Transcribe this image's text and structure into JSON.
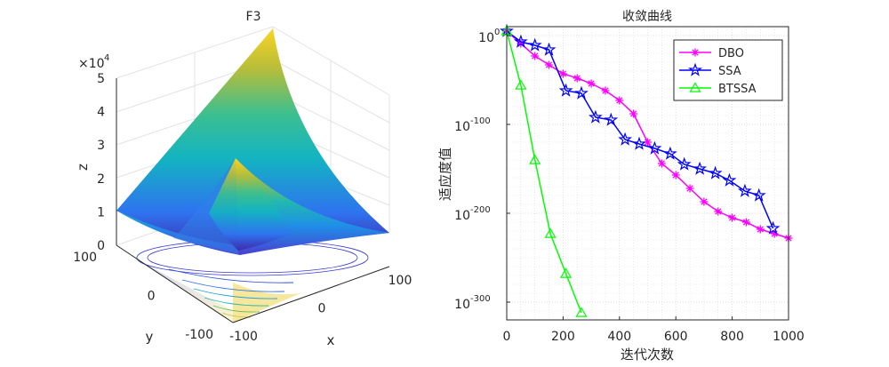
{
  "chart_data": [
    {
      "type": "surface3d",
      "title": "F3",
      "xlabel": "x",
      "ylabel": "y",
      "zlabel": "z",
      "x_ticks": [
        -100,
        0,
        100
      ],
      "y_ticks": [
        -100,
        0,
        100
      ],
      "z_ticks": [
        0,
        1,
        2,
        3,
        4,
        5
      ],
      "z_multiplier": "×10",
      "z_multiplier_exp": "4",
      "xlim": [
        -100,
        100
      ],
      "ylim": [
        -100,
        100
      ],
      "zlim": [
        0,
        5
      ],
      "z_peak": 5.0,
      "colormap": [
        "#3e26a8",
        "#2f73f0",
        "#13b3c2",
        "#3cbf8f",
        "#b7bd3a",
        "#f9d524"
      ]
    },
    {
      "type": "line",
      "title": "收敛曲线",
      "xlabel": "迭代次数",
      "ylabel": "适应度值",
      "yscale": "log",
      "xlim": [
        0,
        1000
      ],
      "ylim_exp": [
        -320,
        10
      ],
      "x_ticks": [
        0,
        200,
        400,
        600,
        800,
        1000
      ],
      "y_tick_base": "10",
      "y_tick_exps": [
        "0",
        "-100",
        "-200",
        "-300"
      ],
      "legend_position": "top-right",
      "series": [
        {
          "name": "DBO",
          "color": "#ff00ff",
          "marker": "asterisk",
          "x": [
            0,
            50,
            100,
            150,
            200,
            250,
            300,
            350,
            400,
            450,
            500,
            550,
            600,
            650,
            700,
            750,
            800,
            850,
            900,
            950,
            1000
          ],
          "log10_y": [
            5,
            -9,
            -23,
            -33,
            -43,
            -48,
            -54,
            -62,
            -73,
            -88,
            -120,
            -144,
            -157,
            -172,
            -187,
            -198,
            -205,
            -210,
            -218,
            -223,
            -228
          ]
        },
        {
          "name": "SSA",
          "color": "#0000ff",
          "marker": "star",
          "x": [
            0,
            50,
            100,
            150,
            210,
            265,
            315,
            370,
            420,
            470,
            525,
            580,
            630,
            685,
            740,
            790,
            845,
            895,
            945
          ],
          "log10_y": [
            5,
            -7,
            -11,
            -16,
            -62,
            -65,
            -92,
            -95,
            -117,
            -122,
            -127,
            -133,
            -145,
            -150,
            -155,
            -163,
            -175,
            -180,
            -217
          ]
        },
        {
          "name": "BTSSA",
          "color": "#00ff00",
          "marker": "triangle",
          "x": [
            0,
            50,
            100,
            155,
            210,
            265
          ],
          "log10_y": [
            5,
            -56,
            -140,
            -223,
            -268,
            -312
          ]
        }
      ]
    }
  ]
}
